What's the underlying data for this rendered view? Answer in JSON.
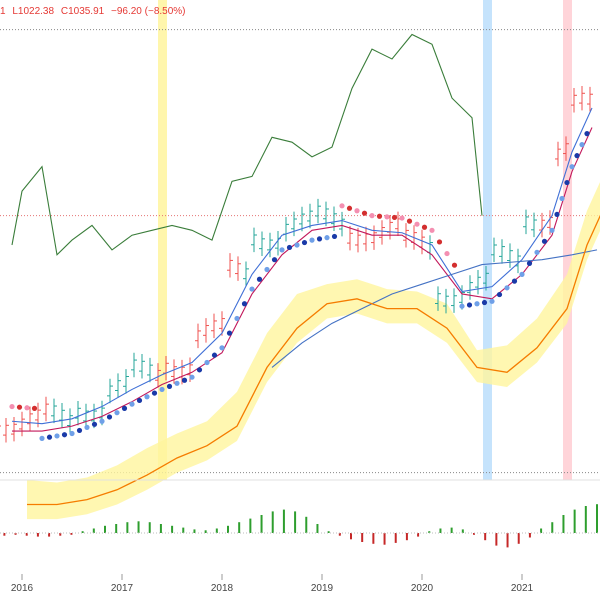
{
  "legend": {
    "open_fragment": "1",
    "low": "L1022.38",
    "close": "C1035.91",
    "change": "−96.20 (−8.50%)"
  },
  "colors": {
    "up_candle": "#26a69a",
    "down_candle": "#ef5350",
    "cloud": "#fff59d",
    "conversion": "#3f6fd6",
    "base": "#c2185b",
    "lagging": "#3a7d3a",
    "leading_a": "#f57c00",
    "leading_b": "#f57c00",
    "sma": "#4472c4",
    "dot_up": "#1a3aa8",
    "dot_up_light": "#6fa0e8",
    "dot_down": "#d32f2f",
    "dot_down_light": "#f48fb1",
    "hist_up": "#2e9e2e",
    "hist_down": "#c62828",
    "hl_yellow": "#fff59d",
    "hl_blue": "#bbdefb",
    "hl_red": "#ffcdd2",
    "dotted_line": "#888888",
    "red_dotted": "#e57373"
  },
  "chart_data": [
    {
      "type": "line",
      "title": "",
      "x_ticks": [
        "2016",
        "2017",
        "2018",
        "2019",
        "2020",
        "2021"
      ],
      "highlight_bands": [
        {
          "x": 2017.4,
          "color": "yellow"
        },
        {
          "x": 2020.65,
          "color": "blue"
        },
        {
          "x": 2021.45,
          "color": "red"
        }
      ],
      "reference_lines": [
        {
          "y": 1720,
          "style": "dotted",
          "color": "gray"
        },
        {
          "y": 1340,
          "style": "dotted",
          "color": "red"
        },
        {
          "y": 815,
          "style": "dotted",
          "color": "gray"
        }
      ],
      "series": [
        {
          "name": "",
          "role": "lagging",
          "x": [
            2015.9,
            2016.0,
            2016.2,
            2016.35,
            2016.5,
            2016.7,
            2016.9,
            2017.1,
            2017.3,
            2017.5,
            2017.7,
            2017.9,
            2018.1,
            2018.3,
            2018.5,
            2018.7,
            2018.9,
            2019.1,
            2019.3,
            2019.5,
            2019.7,
            2019.9,
            2020.1,
            2020.3,
            2020.5,
            2020.6
          ],
          "y": [
            1280,
            1390,
            1440,
            1260,
            1290,
            1320,
            1270,
            1300,
            1310,
            1320,
            1310,
            1290,
            1410,
            1420,
            1500,
            1490,
            1460,
            1480,
            1600,
            1680,
            1660,
            1710,
            1690,
            1580,
            1540,
            1340
          ]
        },
        {
          "name": "",
          "role": "conversion",
          "x": [
            2015.9,
            2016.2,
            2016.5,
            2016.8,
            2017.1,
            2017.4,
            2017.7,
            2018.0,
            2018.3,
            2018.6,
            2018.9,
            2019.2,
            2019.5,
            2019.8,
            2020.1,
            2020.4,
            2020.7,
            2021.0,
            2021.3,
            2021.5,
            2021.7
          ],
          "y": [
            920,
            915,
            925,
            950,
            985,
            1015,
            1040,
            1100,
            1220,
            1300,
            1320,
            1330,
            1310,
            1305,
            1280,
            1185,
            1195,
            1250,
            1340,
            1470,
            1560
          ]
        },
        {
          "name": "",
          "role": "base",
          "x": [
            2015.9,
            2016.2,
            2016.5,
            2016.8,
            2017.1,
            2017.4,
            2017.7,
            2018.0,
            2018.3,
            2018.6,
            2018.9,
            2019.2,
            2019.5,
            2019.8,
            2020.1,
            2020.4,
            2020.7,
            2021.0,
            2021.3,
            2021.5,
            2021.7
          ],
          "y": [
            900,
            900,
            910,
            930,
            960,
            995,
            1020,
            1060,
            1180,
            1260,
            1310,
            1320,
            1300,
            1300,
            1260,
            1180,
            1170,
            1220,
            1300,
            1430,
            1520
          ]
        },
        {
          "name": "",
          "role": "sma",
          "x": [
            2018.5,
            2018.8,
            2019.1,
            2019.4,
            2019.7,
            2020.0,
            2020.3,
            2020.6,
            2020.9,
            2021.2,
            2021.5,
            2021.75
          ],
          "y": [
            1030,
            1080,
            1120,
            1150,
            1180,
            1200,
            1220,
            1240,
            1245,
            1250,
            1260,
            1270
          ]
        }
      ],
      "histogram": {
        "x_range": [
          2015.6,
          2021.75
        ],
        "values": [
          -0.2,
          -0.2,
          -0.3,
          -0.2,
          -0.3,
          -0.4,
          -0.4,
          -0.3,
          -0.2,
          0.2,
          0.5,
          0.8,
          1.0,
          1.2,
          1.3,
          1.2,
          1.0,
          0.8,
          0.6,
          0.4,
          0.3,
          0.5,
          0.8,
          1.2,
          1.6,
          2.0,
          2.4,
          2.6,
          2.4,
          1.8,
          1.0,
          0.2,
          -0.3,
          -0.7,
          -1.0,
          -1.2,
          -1.3,
          -1.1,
          -0.8,
          -0.4,
          0.2,
          0.5,
          0.6,
          0.4,
          -0.2,
          -0.8,
          -1.4,
          -1.6,
          -1.2,
          -0.5,
          0.5,
          1.2,
          2.0,
          2.6,
          3.0,
          3.2
        ]
      }
    }
  ]
}
